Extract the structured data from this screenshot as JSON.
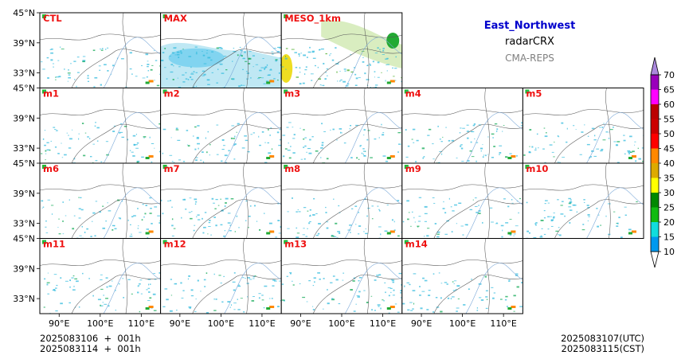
{
  "title": {
    "region": "East_Northwest",
    "variable": "radarCRX",
    "source": "CMA-REPS"
  },
  "rows": [
    [
      "CTL",
      "MAX",
      "MESO_1km"
    ],
    [
      "m1",
      "m2",
      "m3",
      "m4",
      "m5"
    ],
    [
      "m6",
      "m7",
      "m8",
      "m9",
      "m10"
    ],
    [
      "m11",
      "m12",
      "m13",
      "m14"
    ]
  ],
  "lat_ticks": [
    "45°N",
    "39°N",
    "33°N"
  ],
  "lon_ticks": [
    "90°E",
    "100°E",
    "110°E"
  ],
  "colorbar": {
    "ticks": [
      "10",
      "15",
      "20",
      "25",
      "30",
      "35",
      "40",
      "45",
      "50",
      "55",
      "60",
      "65",
      "70"
    ],
    "colors": [
      "#0099ee",
      "#11dddd",
      "#11bb11",
      "#008800",
      "#ffff00",
      "#ddaa00",
      "#ff8800",
      "#ff0000",
      "#cc0000",
      "#bb0000",
      "#ff00ff",
      "#9900bb",
      "#aa88dd"
    ],
    "under_color": "#ffffff",
    "over_color": "#aa88dd"
  },
  "footer": {
    "left_line1": "2025083106  +  001h",
    "left_line2": "2025083114  +  001h",
    "right_line1": "2025083107(UTC)",
    "right_line2": "2025083115(CST)"
  },
  "colors": {
    "label": "#ee1111",
    "frame": "#000000",
    "border": "#555555",
    "river": "#7aa8d8",
    "echo": "#33bbdd"
  }
}
